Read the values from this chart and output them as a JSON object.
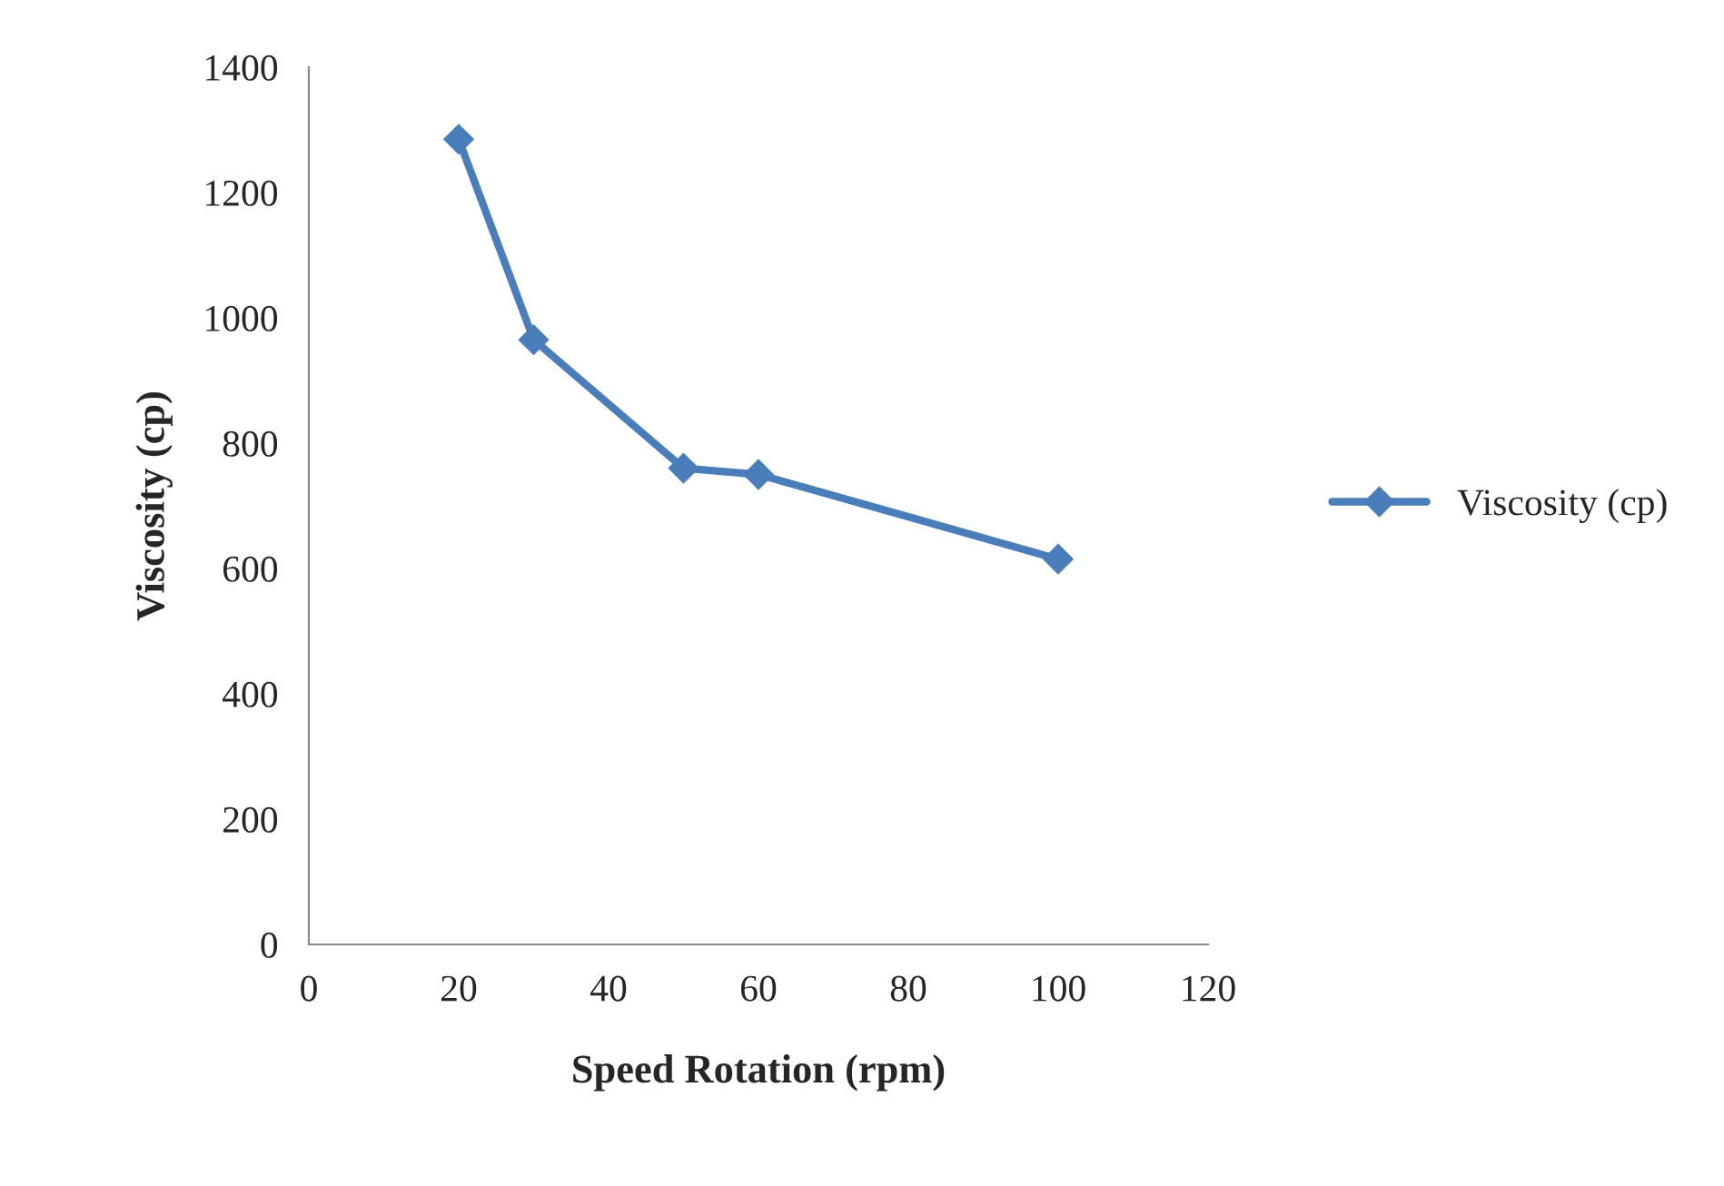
{
  "chart_data": {
    "type": "line",
    "xlabel": "Speed Rotation (rpm)",
    "ylabel": "Viscosity (cp)",
    "x": [
      20,
      30,
      50,
      60,
      100
    ],
    "series": [
      {
        "name": "Viscosity (cp)",
        "color": "#4a7ebb",
        "values": [
          1285,
          965,
          760,
          750,
          615
        ]
      }
    ],
    "xlim": [
      0,
      120
    ],
    "xticks": [
      0,
      20,
      40,
      60,
      80,
      100,
      120
    ],
    "ylim": [
      0,
      1400
    ],
    "yticks": [
      0,
      200,
      400,
      600,
      800,
      1000,
      1200,
      1400
    ],
    "marker": "diamond",
    "line_style": "solid",
    "legend": "right",
    "grid": false
  }
}
